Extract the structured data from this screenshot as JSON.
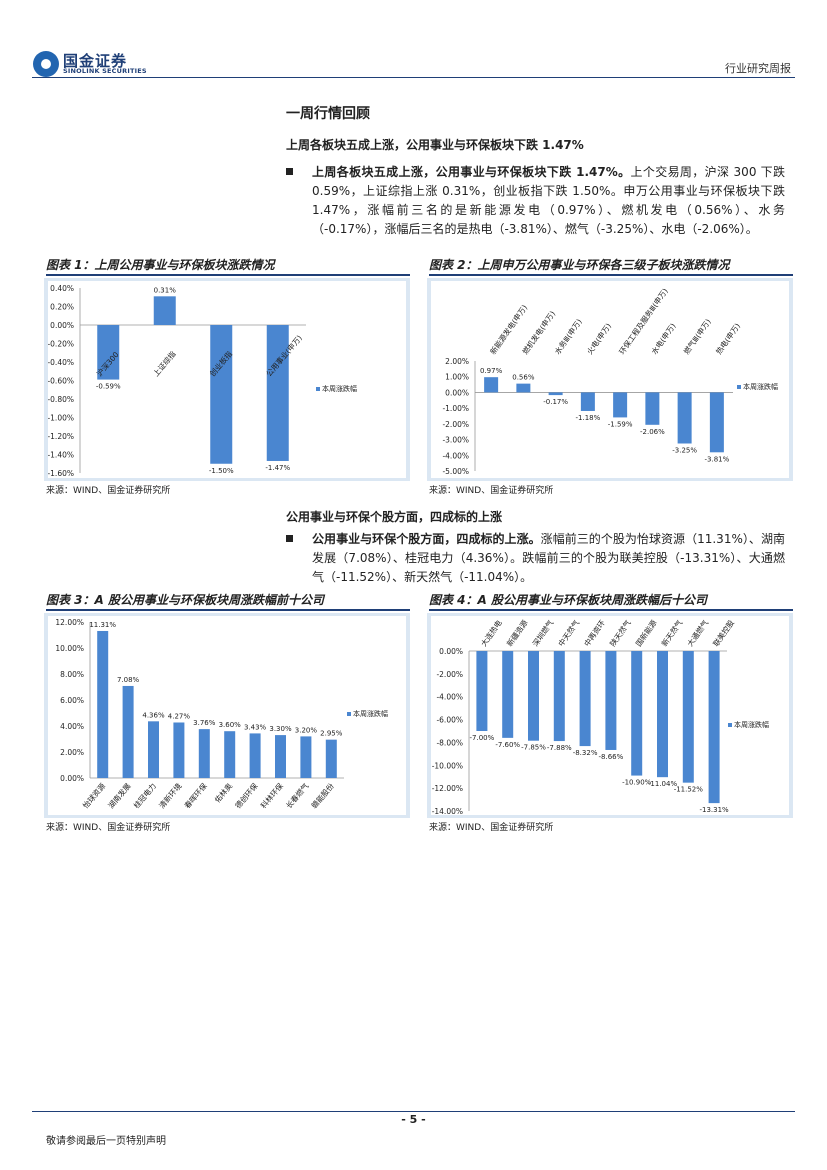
{
  "header": {
    "logo_cn": "国金证券",
    "logo_en": "SINOLINK SECURITIES",
    "report_type": "行业研究周报"
  },
  "section_title": "一周行情回顾",
  "part1": {
    "subtitle": "上周各板块五成上涨，公用事业与环保板块下跌 1.47%",
    "bullet_bold": "上周各板块五成上涨，公用事业与环保板块下跌 1.47%。",
    "bullet_text": "上个交易周，沪深 300 下跌 0.59%，上证综指上涨 0.31%，创业板指下跌 1.50%。申万公用事业与环保板块下跌 1.47%，涨幅前三名的是新能源发电（0.97%）、燃机发电（0.56%）、水务（-0.17%），涨幅后三名的是热电（-3.81%）、燃气（-3.25%）、水电（-2.06%）。"
  },
  "part2": {
    "subtitle": "公用事业与环保个股方面，四成标的上涨",
    "bullet_bold": "公用事业与环保个股方面，四成标的上涨。",
    "bullet_text": "涨幅前三的个股为怡球资源（11.31%）、湖南发展（7.08%）、桂冠电力（4.36%）。跌幅前三的个股为联美控股（-13.31%）、大通燃气（-11.52%）、新天然气（-11.04%）。"
  },
  "figures": [
    {
      "title": "图表 1：上周公用事业与环保板块涨跌情况",
      "source": "来源：WIND、国金证券研究所"
    },
    {
      "title": "图表 2：上周申万公用事业与环保各三级子板块涨跌情况",
      "source": "来源：WIND、国金证券研究所"
    },
    {
      "title": "图表 3：A 股公用事业与环保板块周涨跌幅前十公司",
      "source": "来源：WIND、国金证券研究所"
    },
    {
      "title": "图表 4：A 股公用事业与环保板块周涨跌幅后十公司",
      "source": "来源：WIND、国金证券研究所"
    }
  ],
  "chart_data": [
    {
      "type": "bar",
      "categories": [
        "沪深300",
        "上证综指",
        "创业板指",
        "公用事业(申万)"
      ],
      "series": [
        {
          "name": "本周涨跌幅",
          "values": [
            -0.59,
            0.31,
            -1.5,
            -1.47
          ]
        }
      ],
      "data_labels": [
        "-0.59%",
        "0.31%",
        "-1.50%",
        "-1.47%"
      ],
      "ylim": [
        -1.6,
        0.4
      ],
      "yticks": [
        "0.40%",
        "0.20%",
        "0.00%",
        "-0.20%",
        "-0.40%",
        "-0.60%",
        "-0.80%",
        "-1.00%",
        "-1.20%",
        "-1.40%",
        "-1.60%"
      ],
      "legend": "right",
      "color": "#4a86d0"
    },
    {
      "type": "bar",
      "categories": [
        "新能源发电(申万)",
        "燃机发电(申万)",
        "水务Ⅲ(申万)",
        "火电(申万)",
        "环保工程及服务Ⅲ(申万)",
        "水电(申万)",
        "燃气Ⅲ(申万)",
        "热电(申万)"
      ],
      "series": [
        {
          "name": "本周涨跌幅",
          "values": [
            0.97,
            0.56,
            -0.17,
            -1.18,
            -1.59,
            -2.06,
            -3.25,
            -3.81
          ]
        }
      ],
      "data_labels": [
        "0.97%",
        "0.56%",
        "-0.17%",
        "-1.18%",
        "-1.59%",
        "-2.06%",
        "-3.25%",
        "-3.81%"
      ],
      "ylim": [
        -5,
        2
      ],
      "yticks": [
        "2.00%",
        "1.00%",
        "0.00%",
        "-1.00%",
        "-2.00%",
        "-3.00%",
        "-4.00%",
        "-5.00%"
      ],
      "legend": "right",
      "color": "#4a86d0"
    },
    {
      "type": "bar",
      "categories": [
        "怡球资源",
        "湖南发展",
        "桂冠电力",
        "清新环境",
        "春晖环保",
        "佑林奥",
        "德创环保",
        "科林环保",
        "长春燃气",
        "赣能股份"
      ],
      "series": [
        {
          "name": "本周涨跌幅",
          "values": [
            11.31,
            7.08,
            4.36,
            4.27,
            3.76,
            3.6,
            3.43,
            3.3,
            3.2,
            2.95
          ]
        }
      ],
      "data_labels": [
        "11.31%",
        "7.08%",
        "4.36%",
        "4.27%",
        "3.76%",
        "3.60%",
        "3.43%",
        "3.30%",
        "3.20%",
        "2.95%"
      ],
      "ylim": [
        0,
        12
      ],
      "yticks": [
        "12.00%",
        "10.00%",
        "8.00%",
        "6.00%",
        "4.00%",
        "2.00%",
        "0.00%"
      ],
      "legend": "right",
      "color": "#4a86d0"
    },
    {
      "type": "bar",
      "categories": [
        "大连热电",
        "新疆浩源",
        "深圳燃气",
        "中天然气",
        "中再资环",
        "陕天然气",
        "国新能源",
        "新天然气",
        "大通燃气",
        "联美控股"
      ],
      "series": [
        {
          "name": "本周涨跌幅",
          "values": [
            -7.0,
            -7.6,
            -7.85,
            -7.88,
            -8.32,
            -8.66,
            -10.9,
            -11.04,
            -11.52,
            -13.31
          ]
        }
      ],
      "data_labels": [
        "-7.00%",
        "-7.60%",
        "-7.85%",
        "-7.88%",
        "-8.32%",
        "-8.66%",
        "-10.90%",
        "-11.04%",
        "-11.52%",
        "-13.31%"
      ],
      "ylim": [
        -14,
        0
      ],
      "yticks": [
        "0.00%",
        "-2.00%",
        "-4.00%",
        "-6.00%",
        "-8.00%",
        "-10.00%",
        "-12.00%",
        "-14.00%"
      ],
      "legend": "right",
      "color": "#4a86d0"
    }
  ],
  "footer": {
    "page_number": "- 5 -",
    "disclaimer": "敬请参阅最后一页特别声明"
  }
}
